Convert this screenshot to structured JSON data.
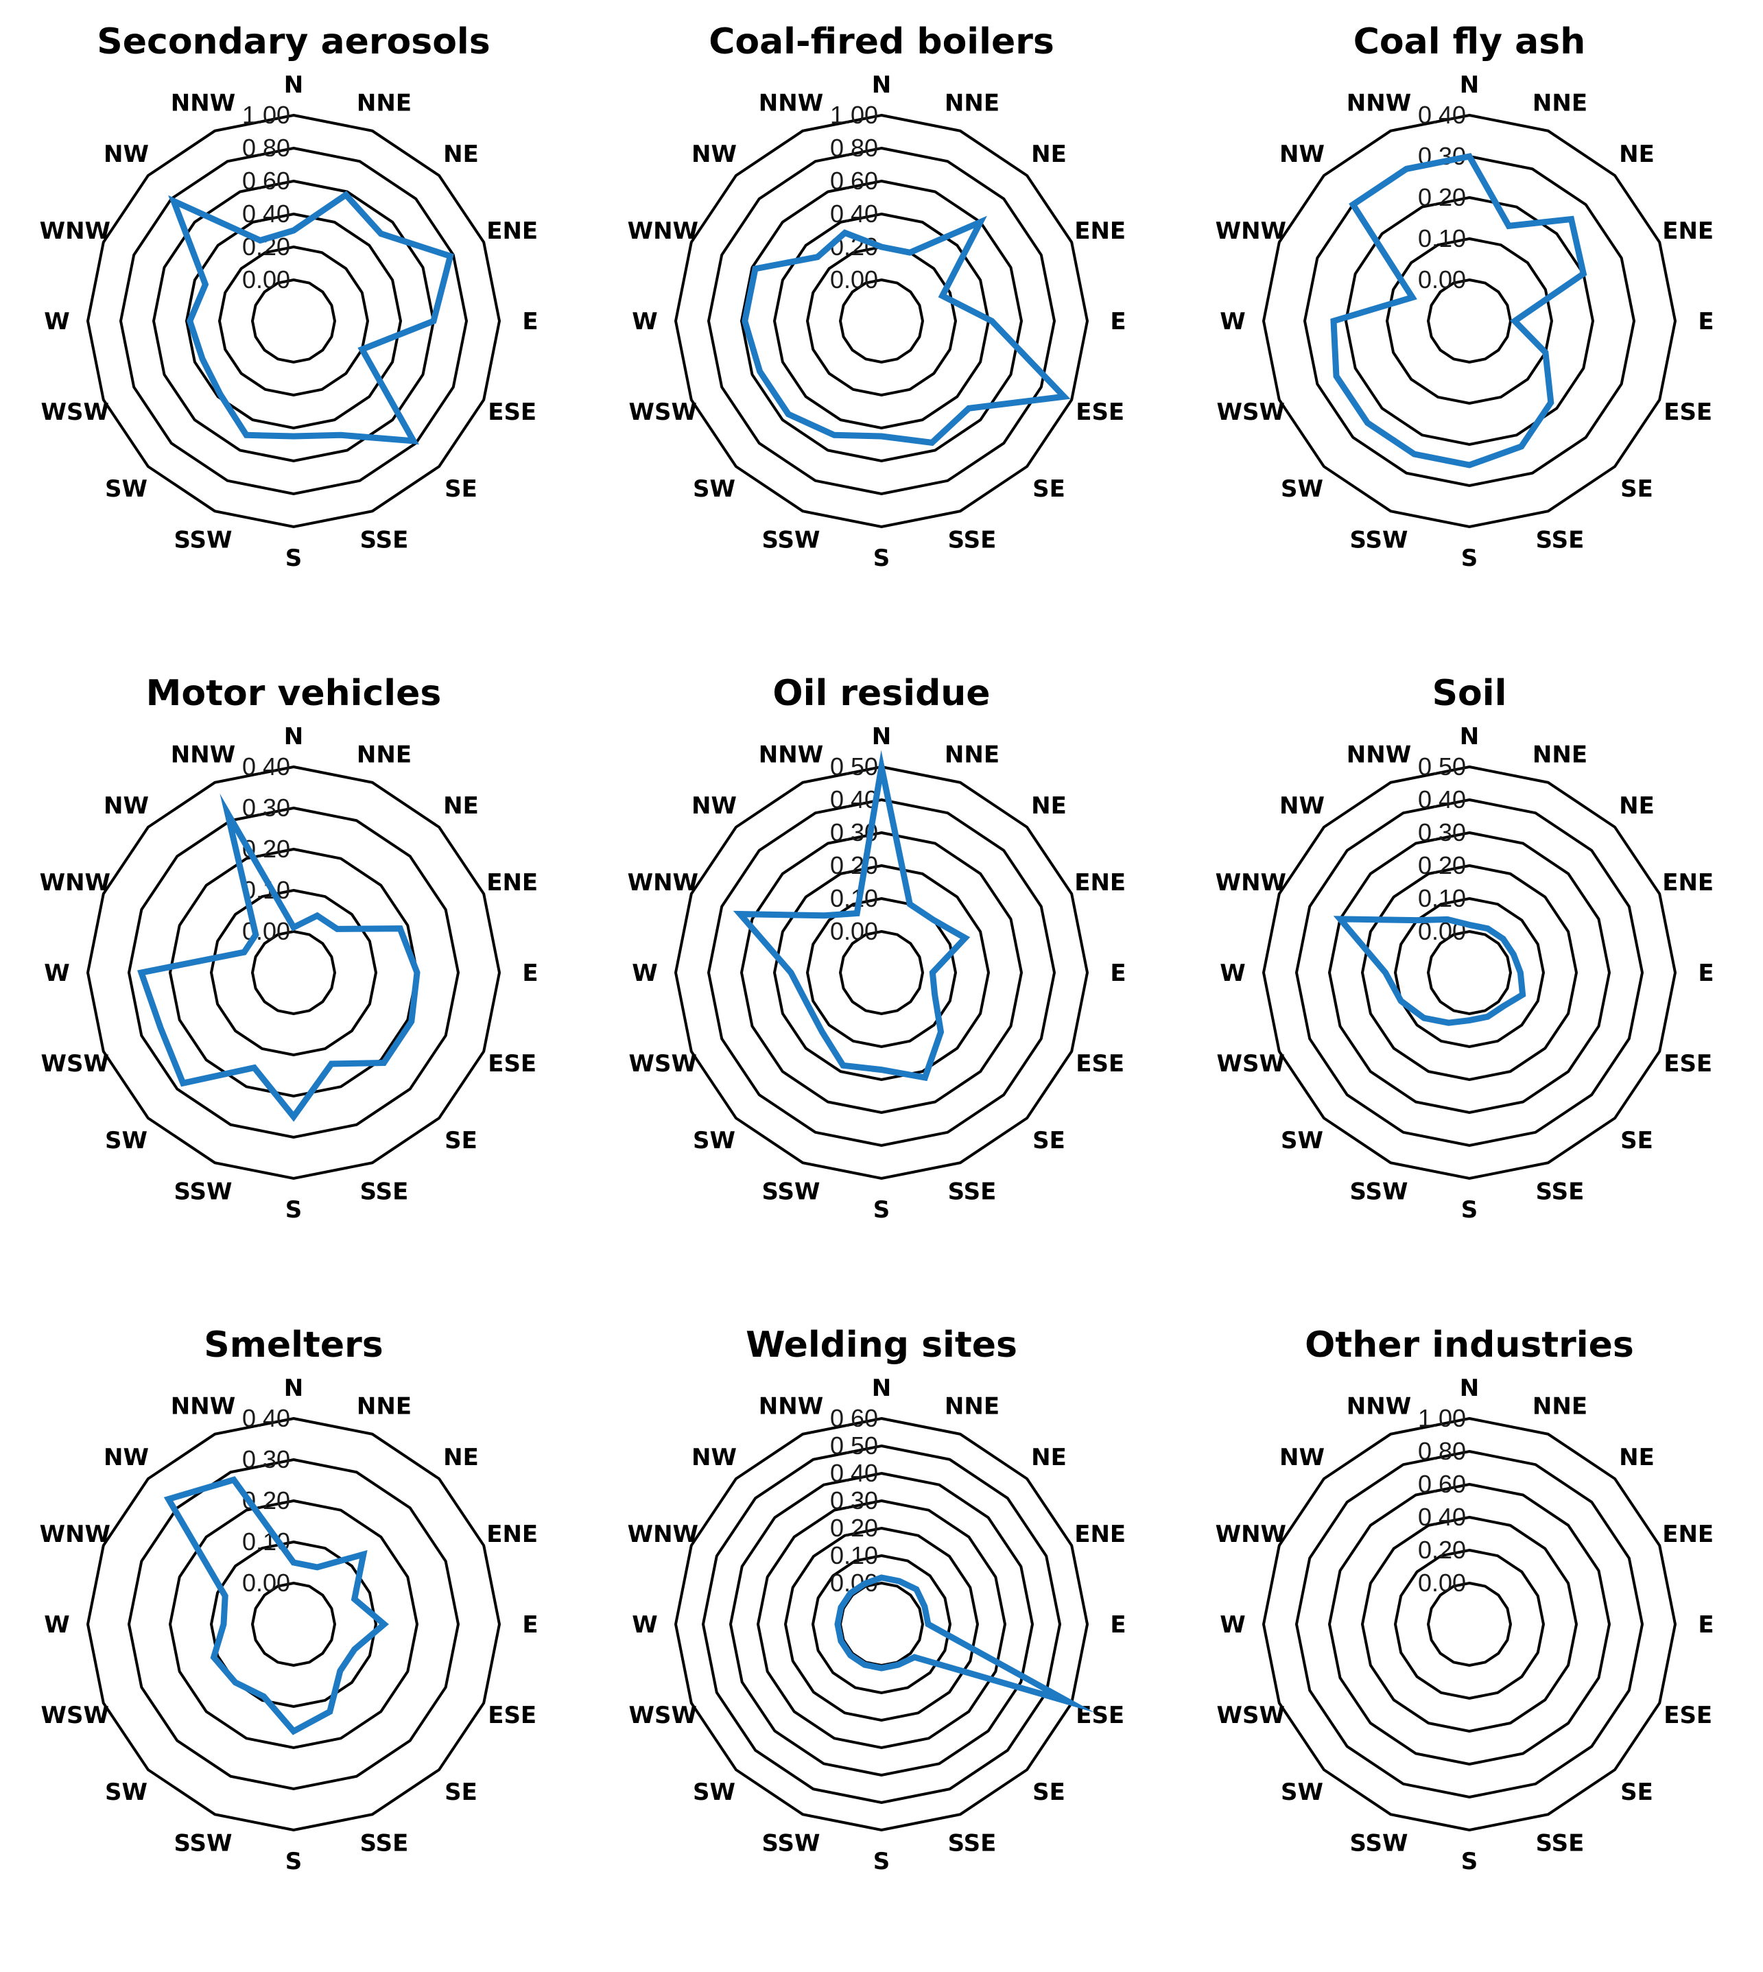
{
  "directions": [
    "N",
    "NNE",
    "NE",
    "ENE",
    "E",
    "ESE",
    "SE",
    "SSE",
    "S",
    "SSW",
    "SW",
    "WSW",
    "W",
    "WNW",
    "NW",
    "NNW"
  ],
  "line_color": "#1f7ac4",
  "chart_data": [
    {
      "type": "radar",
      "title": "Secondary aerosols",
      "ticks": [
        "0.00",
        "0.20",
        "0.40",
        "0.60",
        "0.80",
        "1.00"
      ],
      "rmax": 1.0,
      "series": [
        {
          "values": [
            0.3,
            0.58,
            0.5,
            0.78,
            0.6,
            0.2,
            0.78,
            0.5,
            0.45,
            0.5,
            0.38,
            0.35,
            0.38,
            0.33,
            0.78,
            0.28
          ]
        }
      ]
    },
    {
      "type": "radar",
      "title": "Coal-fired boilers",
      "ticks": [
        "0.00",
        "0.20",
        "0.40",
        "0.60",
        "0.80",
        "1.00"
      ],
      "rmax": 1.0,
      "series": [
        {
          "values": [
            0.2,
            0.2,
            0.6,
            0.15,
            0.42,
            0.95,
            0.5,
            0.55,
            0.45,
            0.5,
            0.55,
            0.55,
            0.58,
            0.58,
            0.3,
            0.33
          ]
        }
      ]
    },
    {
      "type": "radar",
      "title": "Coal fly ash",
      "ticks": [
        "0.00",
        "0.10",
        "0.20",
        "0.30",
        "0.40"
      ],
      "rmax": 0.4,
      "series": [
        {
          "values": [
            0.3,
            0.15,
            0.25,
            0.2,
            0.01,
            0.1,
            0.18,
            0.23,
            0.25,
            0.25,
            0.25,
            0.25,
            0.23,
            0.05,
            0.3,
            0.3
          ]
        }
      ]
    },
    {
      "type": "radar",
      "title": "Motor vehicles",
      "ticks": [
        "0.00",
        "0.10",
        "0.20",
        "0.30",
        "0.40"
      ],
      "rmax": 0.4,
      "series": [
        {
          "values": [
            0.01,
            0.05,
            0.05,
            0.18,
            0.2,
            0.21,
            0.21,
            0.14,
            0.25,
            0.15,
            0.28,
            0.25,
            0.27,
            0.03,
            0.03,
            0.32
          ]
        }
      ]
    },
    {
      "type": "radar",
      "title": "Oil residue",
      "ticks": [
        "0.00",
        "0.10",
        "0.20",
        "0.30",
        "0.40",
        "0.50"
      ],
      "rmax": 0.5,
      "series": [
        {
          "values": [
            0.5,
            0.1,
            0.1,
            0.15,
            0.03,
            0.05,
            0.13,
            0.22,
            0.17,
            0.18,
            0.13,
            0.12,
            0.15,
            0.34,
            0.12,
            0.07
          ]
        }
      ]
    },
    {
      "type": "radar",
      "title": "Soil",
      "ticks": [
        "0.00",
        "0.10",
        "0.20",
        "0.30",
        "0.40",
        "0.50"
      ],
      "rmax": 0.5,
      "series": [
        {
          "values": [
            0.02,
            0.02,
            0.02,
            0.02,
            0.03,
            0.05,
            0.02,
            0.02,
            0.02,
            0.04,
            0.07,
            0.1,
            0.13,
            0.3,
            0.1,
            0.05
          ]
        }
      ]
    },
    {
      "type": "radar",
      "title": "Smelters",
      "ticks": [
        "0.00",
        "0.10",
        "0.20",
        "0.30",
        "0.40"
      ],
      "rmax": 0.4,
      "series": [
        {
          "values": [
            0.05,
            0.05,
            0.14,
            0.06,
            0.12,
            0.06,
            0.06,
            0.13,
            0.16,
            0.09,
            0.1,
            0.11,
            0.07,
            0.08,
            0.33,
            0.28
          ]
        }
      ]
    },
    {
      "type": "radar",
      "title": "Welding sites",
      "ticks": [
        "0.00",
        "0.10",
        "0.20",
        "0.30",
        "0.40",
        "0.50",
        "0.60"
      ],
      "rmax": 0.6,
      "series": [
        {
          "values": [
            0.02,
            0.02,
            0.03,
            0.02,
            0.02,
            0.59,
            0.02,
            0.01,
            0.01,
            0.01,
            0.01,
            0.01,
            0.01,
            0.01,
            0.01,
            0.01
          ]
        }
      ]
    },
    {
      "type": "radar",
      "title": "Other industries",
      "ticks": [
        "0.00",
        "0.20",
        "0.40",
        "0.60",
        "0.80",
        "1.00"
      ],
      "rmax": 1.0,
      "series": []
    }
  ]
}
